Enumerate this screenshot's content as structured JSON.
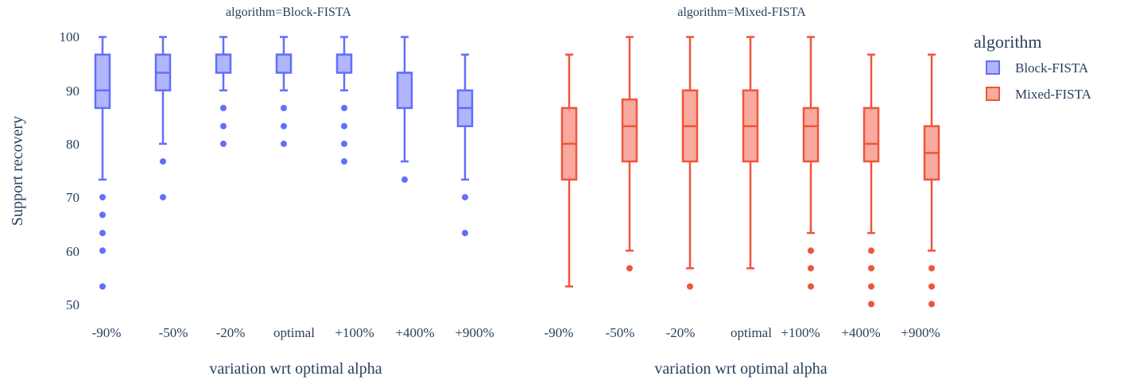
{
  "chart_data": {
    "type": "box",
    "ylabel": "Support recovery",
    "y_ticks": [
      "100",
      "90",
      "80",
      "70",
      "60",
      "50"
    ],
    "ylim": [
      48,
      101
    ],
    "categories": [
      "-90%",
      "-50%",
      "-20%",
      "optimal",
      "+100%",
      "+400%",
      "+900%"
    ],
    "legend": {
      "title": "algorithm",
      "position": "top-right"
    },
    "panels": [
      {
        "title": "algorithm=Block-FISTA",
        "xlabel": "variation wrt optimal  alpha",
        "series_name": "Block-FISTA",
        "color": "#636efa",
        "fill": "#b1b6fc",
        "boxes": [
          {
            "category": "-90%",
            "lowerfence": 73.3,
            "q1": 86.7,
            "median": 90.0,
            "q3": 96.7,
            "upperfence": 100,
            "outliers": [
              70.0,
              66.7,
              63.3,
              60.0,
              53.3
            ]
          },
          {
            "category": "-50%",
            "lowerfence": 80.0,
            "q1": 90.0,
            "median": 93.3,
            "q3": 96.7,
            "upperfence": 100,
            "outliers": [
              76.7,
              70.0
            ]
          },
          {
            "category": "-20%",
            "lowerfence": 90.0,
            "q1": 93.3,
            "median": 96.7,
            "q3": 96.7,
            "upperfence": 100,
            "outliers": [
              86.7,
              83.3,
              80.0
            ]
          },
          {
            "category": "optimal",
            "lowerfence": 90.0,
            "q1": 93.3,
            "median": 96.7,
            "q3": 96.7,
            "upperfence": 100,
            "outliers": [
              86.7,
              83.3,
              80.0
            ]
          },
          {
            "category": "+100%",
            "lowerfence": 90.0,
            "q1": 93.3,
            "median": 96.7,
            "q3": 96.7,
            "upperfence": 100,
            "outliers": [
              86.7,
              83.3,
              80.0,
              76.7
            ]
          },
          {
            "category": "+400%",
            "lowerfence": 76.7,
            "q1": 86.7,
            "median": 93.3,
            "q3": 93.3,
            "upperfence": 100,
            "outliers": [
              73.3
            ]
          },
          {
            "category": "+900%",
            "lowerfence": 73.3,
            "q1": 83.3,
            "median": 86.7,
            "q3": 90.0,
            "upperfence": 96.7,
            "outliers": [
              70.0,
              63.3
            ]
          }
        ]
      },
      {
        "title": "algorithm=Mixed-FISTA",
        "xlabel": "variation wrt optimal  alpha",
        "series_name": "Mixed-FISTA",
        "color": "#ef553b",
        "fill": "#f7aa9d",
        "boxes": [
          {
            "category": "-90%",
            "lowerfence": 53.3,
            "q1": 73.3,
            "median": 80.0,
            "q3": 86.7,
            "upperfence": 96.7,
            "outliers": []
          },
          {
            "category": "-50%",
            "lowerfence": 60.0,
            "q1": 76.7,
            "median": 83.3,
            "q3": 88.3,
            "upperfence": 100,
            "outliers": [
              56.7
            ]
          },
          {
            "category": "-20%",
            "lowerfence": 56.7,
            "q1": 76.7,
            "median": 83.3,
            "q3": 90.0,
            "upperfence": 100,
            "outliers": [
              53.3
            ]
          },
          {
            "category": "optimal",
            "lowerfence": 56.7,
            "q1": 76.7,
            "median": 83.3,
            "q3": 90.0,
            "upperfence": 100,
            "outliers": []
          },
          {
            "category": "+100%",
            "lowerfence": 63.3,
            "q1": 76.7,
            "median": 83.3,
            "q3": 86.7,
            "upperfence": 100,
            "outliers": [
              60.0,
              56.7,
              53.3
            ]
          },
          {
            "category": "+400%",
            "lowerfence": 63.3,
            "q1": 76.7,
            "median": 80.0,
            "q3": 86.7,
            "upperfence": 96.7,
            "outliers": [
              60.0,
              56.7,
              53.3,
              50.0
            ]
          },
          {
            "category": "+900%",
            "lowerfence": 60.0,
            "q1": 73.3,
            "median": 78.3,
            "q3": 83.3,
            "upperfence": 96.7,
            "outliers": [
              56.7,
              53.3,
              50.0
            ]
          }
        ]
      }
    ]
  }
}
